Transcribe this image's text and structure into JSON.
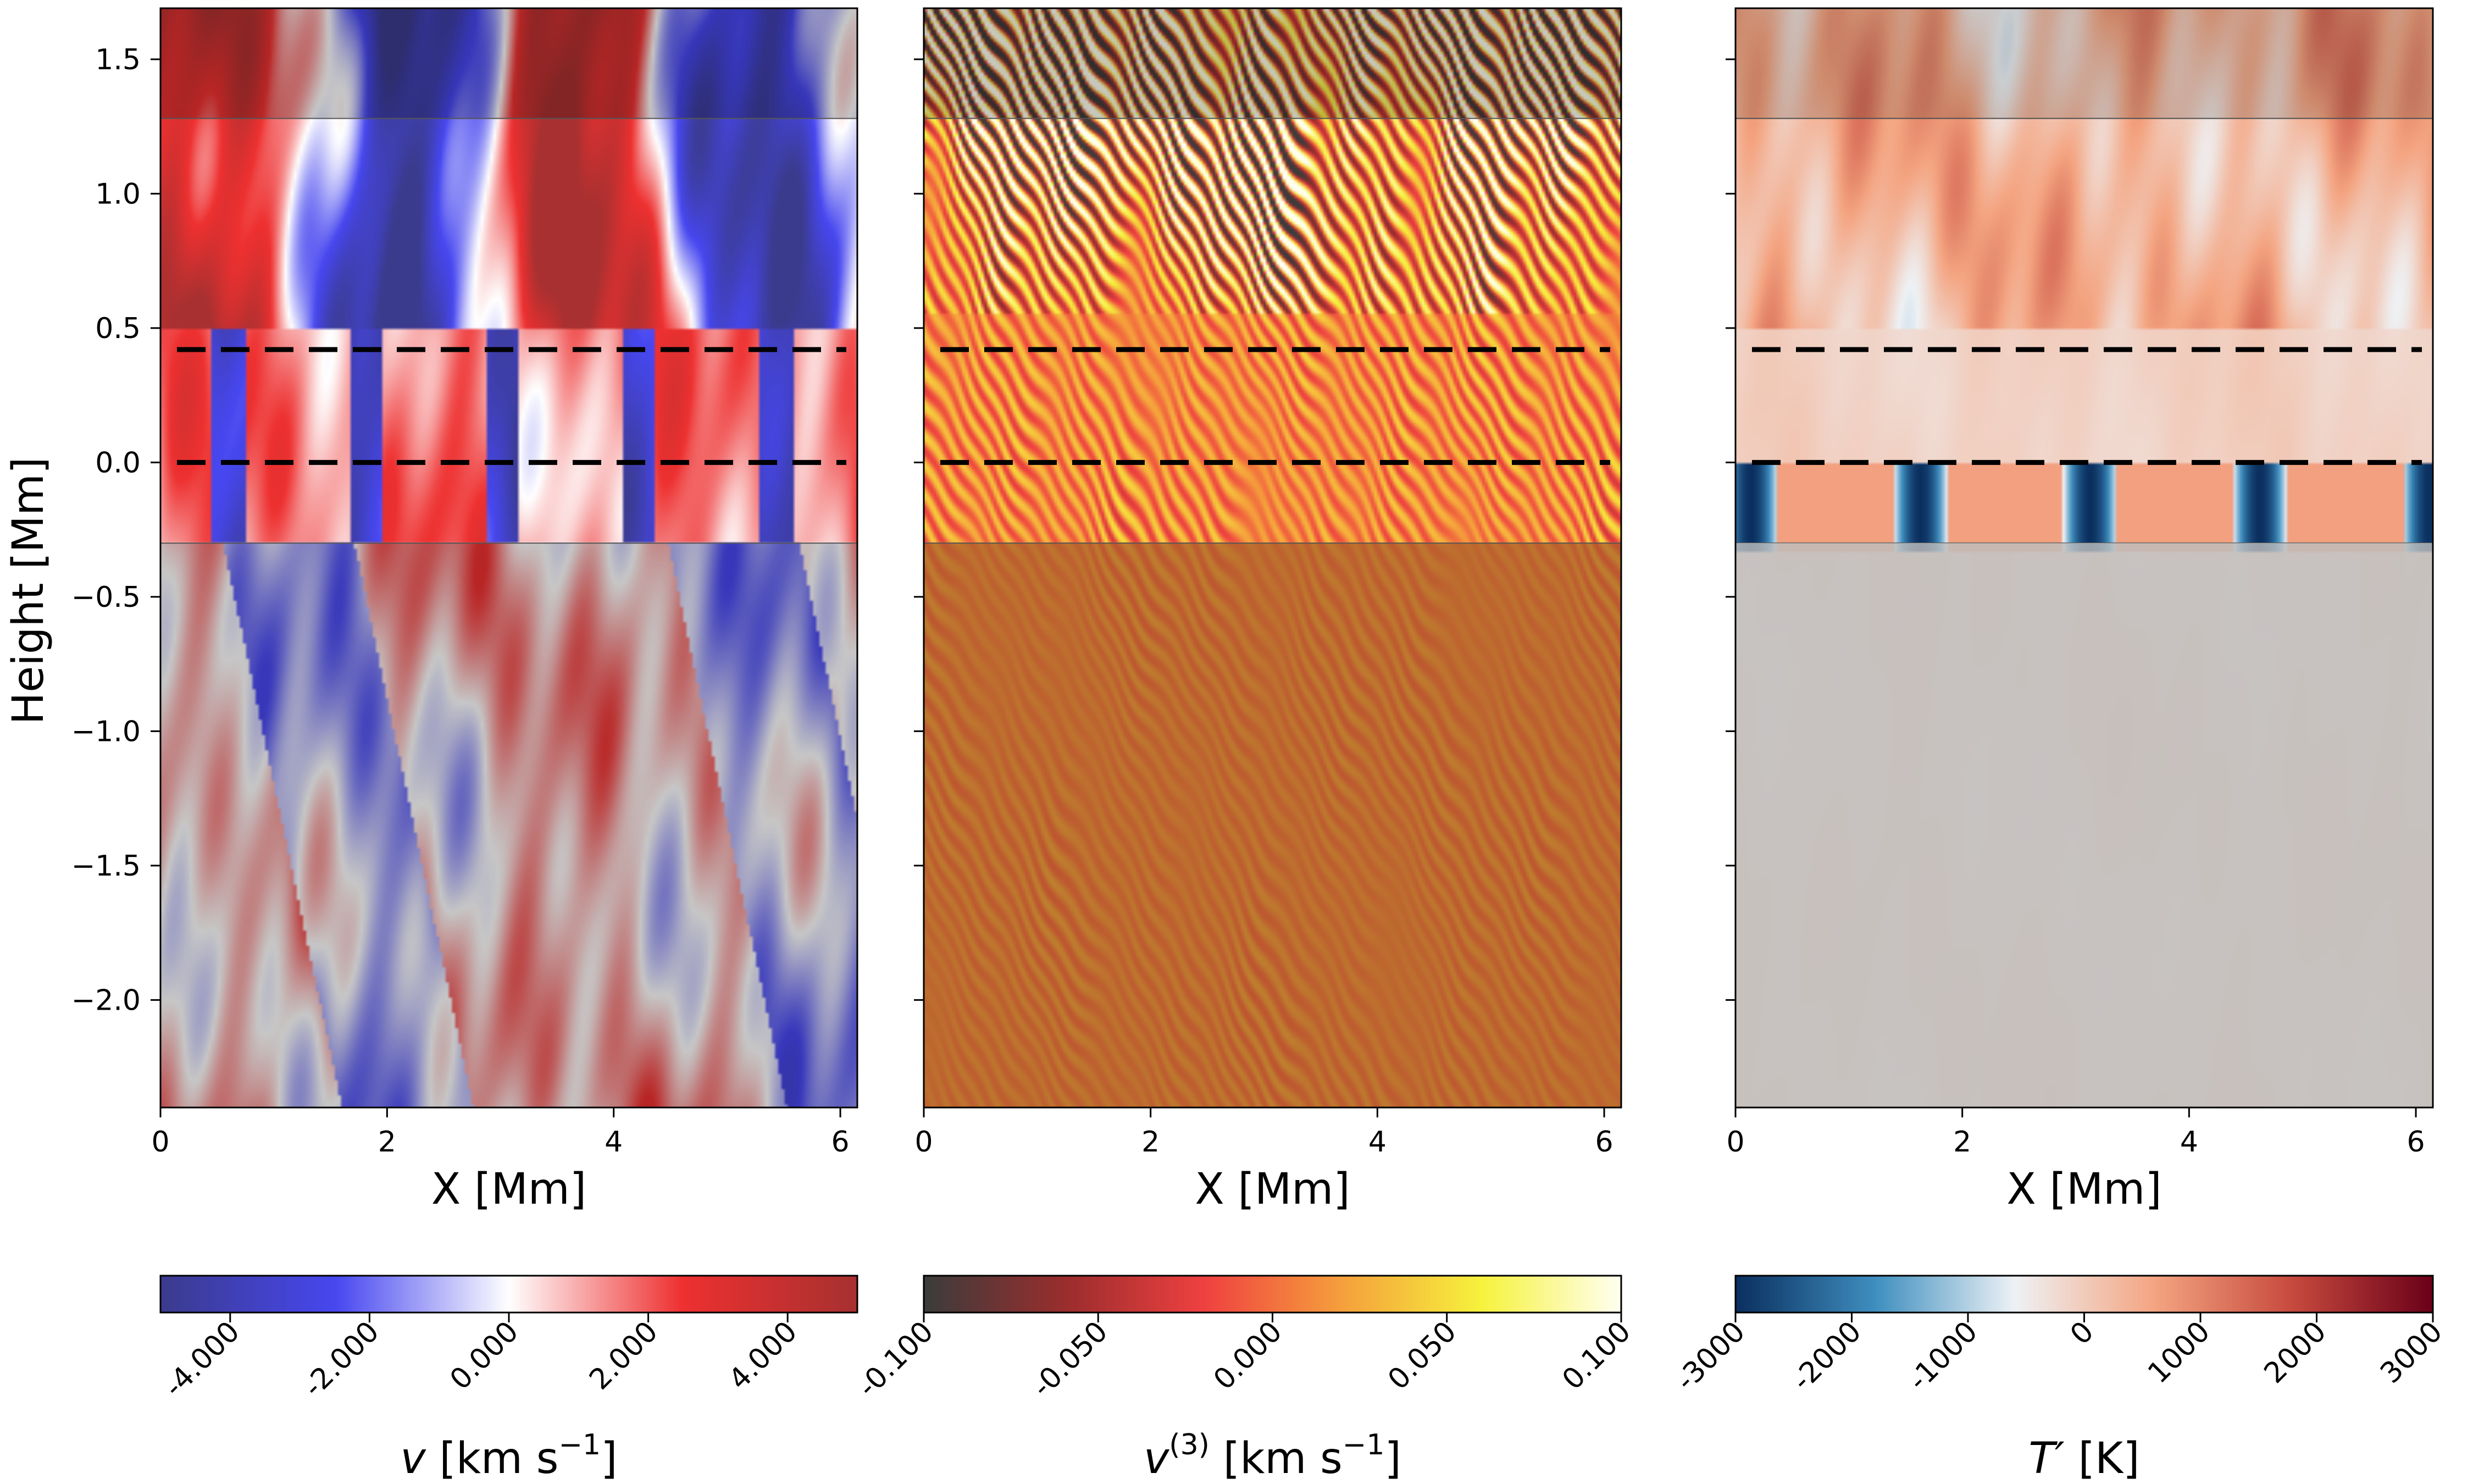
{
  "chart_data": [
    {
      "type": "heatmap",
      "panel": "velocity",
      "xlabel": "X [Mm]",
      "ylabel": "Height [Mm]",
      "xlim": [
        0,
        6.15
      ],
      "ylim": [
        -2.4,
        1.69
      ],
      "xticks": [
        "0",
        "2",
        "4",
        "6"
      ],
      "yticks": [
        "1.5",
        "1.0",
        "0.5",
        "0.0",
        "−0.5",
        "−1.0",
        "−1.5",
        "−2.0"
      ],
      "dashed_lines_height": [
        0.42,
        0.0
      ],
      "shaded_bands_height": [
        [
          1.28,
          1.69
        ],
        [
          -2.4,
          -0.3
        ]
      ],
      "colormap": [
        "#3b3b8e",
        "#4747f0",
        "#ffffff",
        "#ee3030",
        "#a83030"
      ],
      "colorbar": {
        "label_main": "v",
        "label_unit": "[km s",
        "label_exp": "−1",
        "label_close": "]",
        "range": [
          -5,
          5
        ],
        "ticks": [
          -4,
          -2,
          0,
          2,
          4
        ],
        "tick_labels": [
          "-4.000",
          "-2.000",
          "0.000",
          "2.000",
          "4.000"
        ]
      }
    },
    {
      "type": "heatmap",
      "panel": "third-order velocity",
      "xlabel": "X [Mm]",
      "xlim": [
        0,
        6.15
      ],
      "ylim": [
        -2.4,
        1.69
      ],
      "xticks": [
        "0",
        "2",
        "4",
        "6"
      ],
      "dashed_lines_height": [
        0.42,
        0.0
      ],
      "shaded_bands_height": [
        [
          1.28,
          1.69
        ],
        [
          -2.4,
          -0.3
        ]
      ],
      "colormap": [
        "#3c3c3c",
        "#9a2d2d",
        "#ef4040",
        "#f5a03c",
        "#f6f23c",
        "#fffff0"
      ],
      "colorbar": {
        "label_main": "v",
        "label_sup": "(3)",
        "label_unit": "[km s",
        "label_exp": "−1",
        "label_close": "]",
        "range": [
          -0.1,
          0.1
        ],
        "ticks": [
          -0.1,
          -0.05,
          0,
          0.05,
          0.1
        ],
        "tick_labels": [
          "-0.100",
          "-0.050",
          "0.000",
          "0.050",
          "0.100"
        ]
      }
    },
    {
      "type": "heatmap",
      "panel": "temperature perturbation",
      "xlabel": "X [Mm]",
      "xlim": [
        0,
        6.15
      ],
      "ylim": [
        -2.4,
        1.69
      ],
      "xticks": [
        "0",
        "2",
        "4",
        "6"
      ],
      "dashed_lines_height": [
        0.42,
        0.0
      ],
      "shaded_bands_height": [
        [
          1.28,
          1.69
        ],
        [
          -2.4,
          -0.3
        ]
      ],
      "colormap": [
        "#0b3060",
        "#3f8fc0",
        "#eef2f5",
        "#f4a582",
        "#c74a3e",
        "#6b0119"
      ],
      "colorbar": {
        "label_main": "T′",
        "label_unit": "[K]",
        "range": [
          -3000,
          3000
        ],
        "ticks": [
          -3000,
          -2000,
          -1000,
          0,
          1000,
          2000,
          3000
        ],
        "tick_labels": [
          "-3000",
          "-2000",
          "-1000",
          "0",
          "1000",
          "2000",
          "3000"
        ]
      }
    }
  ]
}
